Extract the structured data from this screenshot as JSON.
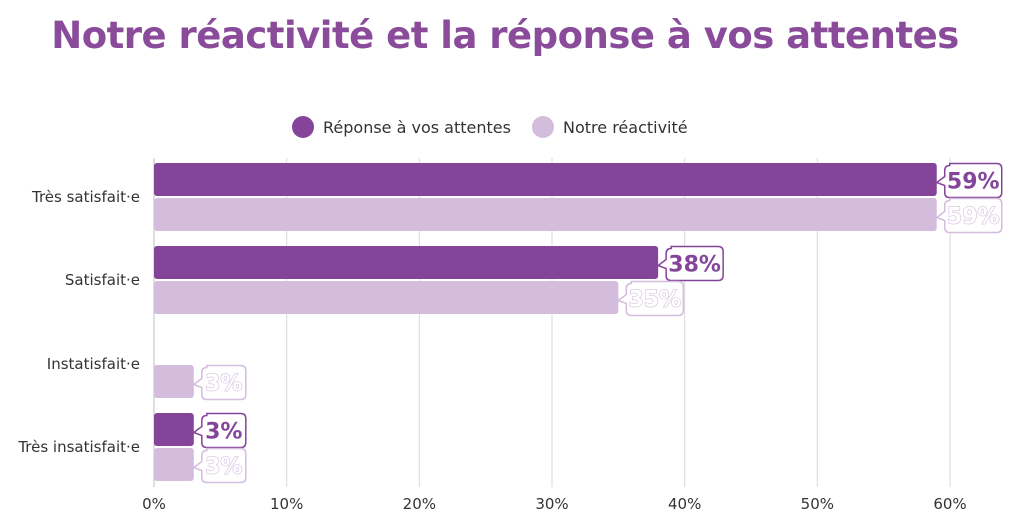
{
  "colors": {
    "title": "#8a4b9b",
    "series_dark": "#84449a",
    "series_light": "#d4bcdc",
    "grid": "#d9d9d9",
    "text": "#333333"
  },
  "chart_data": {
    "type": "bar",
    "orientation": "horizontal",
    "title": "Notre réactivité et la réponse à vos attentes",
    "categories": [
      "Très satisfait·e",
      "Satisfait·e",
      "Instatisfait·e",
      "Très insatisfait·e"
    ],
    "series": [
      {
        "name": "Réponse à vos attentes",
        "values": [
          59,
          38,
          null,
          3
        ],
        "color": "#84449a"
      },
      {
        "name": "Notre réactivité",
        "values": [
          59,
          35,
          3,
          3
        ],
        "color": "#d4bcdc"
      }
    ],
    "xlim": [
      0,
      60
    ],
    "xticks": [
      "0%",
      "10%",
      "20%",
      "30%",
      "40%",
      "50%",
      "60%"
    ],
    "value_suffix": "%",
    "grid": true,
    "legend_position": "top-center"
  }
}
